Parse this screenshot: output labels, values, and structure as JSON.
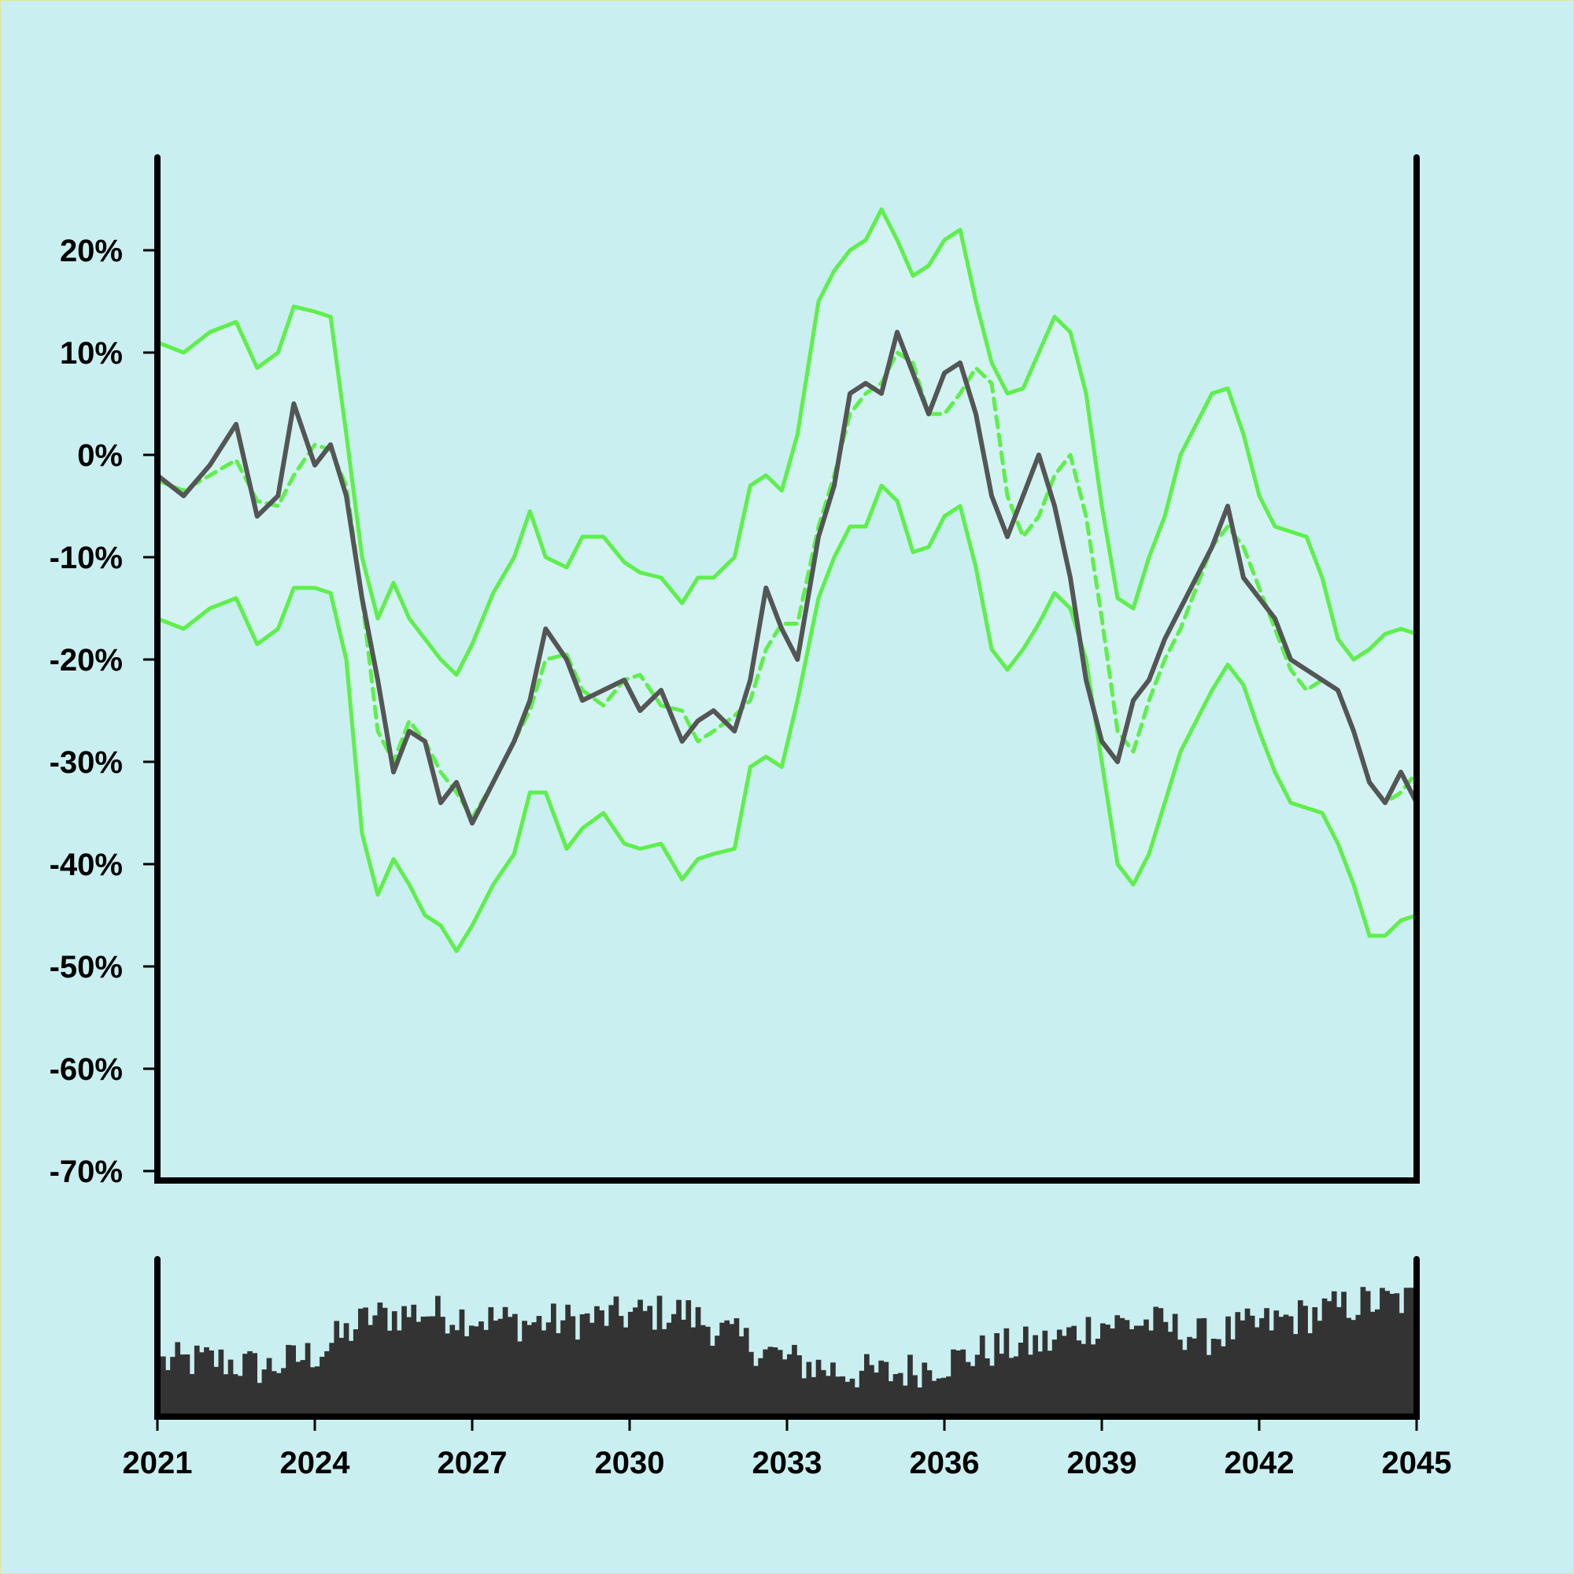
{
  "chart_data": [
    {
      "type": "line",
      "title": "",
      "xlabel": "",
      "ylabel": "",
      "xlim": [
        2021,
        2045
      ],
      "ylim": [
        -70,
        28
      ],
      "yticks": [
        20,
        10,
        0,
        -10,
        -20,
        -30,
        -40,
        -50,
        -60,
        -70
      ],
      "ytick_labels": [
        "20%",
        "10%",
        "0%",
        "-10%",
        "-20%",
        "-30%",
        "-40%",
        "-50%",
        "-60%",
        "-70%"
      ],
      "grid": false,
      "legend": "none",
      "colors": {
        "price": "#555555",
        "bands": "#5ef04a",
        "band_fill": "#d3f3f3",
        "background": "#c9eff0"
      },
      "series": [
        {
          "role": "price",
          "style": "solid",
          "x": [
            2021.0,
            2021.5,
            2022.0,
            2022.5,
            2022.9,
            2023.3,
            2023.6,
            2024.0,
            2024.3,
            2024.6,
            2024.9,
            2025.2,
            2025.5,
            2025.8,
            2026.1,
            2026.4,
            2026.7,
            2027.0,
            2027.4,
            2027.8,
            2028.1,
            2028.4,
            2028.8,
            2029.1,
            2029.5,
            2029.9,
            2030.2,
            2030.6,
            2031.0,
            2031.3,
            2031.6,
            2032.0,
            2032.3,
            2032.6,
            2032.9,
            2033.2,
            2033.6,
            2033.9,
            2034.2,
            2034.5,
            2034.8,
            2035.1,
            2035.4,
            2035.7,
            2036.0,
            2036.3,
            2036.6,
            2036.9,
            2037.2,
            2037.5,
            2037.8,
            2038.1,
            2038.4,
            2038.7,
            2039.0,
            2039.3,
            2039.6,
            2039.9,
            2040.2,
            2040.5,
            2040.8,
            2041.1,
            2041.4,
            2041.7,
            2042.0,
            2042.3,
            2042.6,
            2042.9,
            2043.2,
            2043.5,
            2043.8,
            2044.1,
            2044.4,
            2044.7,
            2045.0
          ],
          "y": [
            -2,
            -4,
            -1,
            3,
            -6,
            -4,
            5,
            -1,
            1,
            -4,
            -14,
            -22,
            -31,
            -27,
            -28,
            -34,
            -32,
            -36,
            -32,
            -28,
            -24,
            -17,
            -20,
            -24,
            -23,
            -22,
            -25,
            -23,
            -28,
            -26,
            -25,
            -27,
            -22,
            -13,
            -17,
            -20,
            -8,
            -3,
            6,
            7,
            6,
            12,
            8,
            4,
            8,
            9,
            4,
            -4,
            -8,
            -4,
            0,
            -5,
            -12,
            -22,
            -28,
            -30,
            -24,
            -22,
            -18,
            -15,
            -12,
            -9,
            -5,
            -12,
            -14,
            -16,
            -20,
            -21,
            -22,
            -23,
            -27,
            -32,
            -34,
            -31,
            -34
          ]
        },
        {
          "role": "middle-band",
          "style": "dashed",
          "x": [
            2021.0,
            2021.5,
            2022.0,
            2022.5,
            2022.9,
            2023.3,
            2023.6,
            2024.0,
            2024.3,
            2024.6,
            2024.9,
            2025.2,
            2025.5,
            2025.8,
            2026.1,
            2026.4,
            2026.7,
            2027.0,
            2027.4,
            2027.8,
            2028.1,
            2028.4,
            2028.8,
            2029.1,
            2029.5,
            2029.9,
            2030.2,
            2030.6,
            2031.0,
            2031.3,
            2031.6,
            2032.0,
            2032.3,
            2032.6,
            2032.9,
            2033.2,
            2033.6,
            2033.9,
            2034.2,
            2034.5,
            2034.8,
            2035.1,
            2035.4,
            2035.7,
            2036.0,
            2036.3,
            2036.6,
            2036.9,
            2037.2,
            2037.5,
            2037.8,
            2038.1,
            2038.4,
            2038.7,
            2039.0,
            2039.3,
            2039.6,
            2039.9,
            2040.2,
            2040.5,
            2040.8,
            2041.1,
            2041.4,
            2041.7,
            2042.0,
            2042.3,
            2042.6,
            2042.9,
            2043.2,
            2043.5,
            2043.8,
            2044.1,
            2044.4,
            2044.7,
            2045.0
          ],
          "y": [
            -2.5,
            -3.5,
            -2,
            -0.5,
            -4.5,
            -5,
            -2,
            1,
            0.5,
            -3,
            -14,
            -27,
            -30,
            -26,
            -28,
            -31,
            -33,
            -35.5,
            -32,
            -28,
            -25,
            -20,
            -19.5,
            -23,
            -24.5,
            -22,
            -21.5,
            -24.5,
            -25,
            -28,
            -27,
            -25.5,
            -24,
            -19,
            -16.5,
            -16.5,
            -7,
            -2,
            4,
            6,
            7,
            10,
            9,
            4,
            4,
            6,
            8.5,
            7,
            -4,
            -8,
            -6,
            -2,
            0,
            -6,
            -16,
            -27,
            -29,
            -24,
            -20,
            -17,
            -13,
            -9,
            -7,
            -9,
            -13,
            -17,
            -21,
            -23,
            -22,
            -23,
            -27,
            -32,
            -34,
            -33,
            -31
          ]
        },
        {
          "role": "upper-band",
          "style": "solid",
          "x": [
            2021.0,
            2021.5,
            2022.0,
            2022.5,
            2022.9,
            2023.3,
            2023.6,
            2024.0,
            2024.3,
            2024.6,
            2024.9,
            2025.2,
            2025.5,
            2025.8,
            2026.1,
            2026.4,
            2026.7,
            2027.0,
            2027.4,
            2027.8,
            2028.1,
            2028.4,
            2028.8,
            2029.1,
            2029.5,
            2029.9,
            2030.2,
            2030.6,
            2031.0,
            2031.3,
            2031.6,
            2032.0,
            2032.3,
            2032.6,
            2032.9,
            2033.2,
            2033.6,
            2033.9,
            2034.2,
            2034.5,
            2034.8,
            2035.1,
            2035.4,
            2035.7,
            2036.0,
            2036.3,
            2036.6,
            2036.9,
            2037.2,
            2037.5,
            2037.8,
            2038.1,
            2038.4,
            2038.7,
            2039.0,
            2039.3,
            2039.6,
            2039.9,
            2040.2,
            2040.5,
            2040.8,
            2041.1,
            2041.4,
            2041.7,
            2042.0,
            2042.3,
            2042.6,
            2042.9,
            2043.2,
            2043.5,
            2043.8,
            2044.1,
            2044.4,
            2044.7,
            2045.0
          ],
          "y": [
            11,
            10,
            12,
            13,
            8.5,
            10,
            14.5,
            14,
            13.5,
            2,
            -10,
            -16,
            -12.5,
            -16,
            -18,
            -20,
            -21.5,
            -18.5,
            -13.5,
            -10,
            -5.5,
            -10,
            -11,
            -8,
            -8,
            -10.5,
            -11.5,
            -12,
            -14.5,
            -12,
            -12,
            -10,
            -3,
            -2,
            -3.5,
            2,
            15,
            18,
            20,
            21,
            24,
            21,
            17.5,
            18.5,
            21,
            22,
            15,
            9,
            6,
            6.5,
            10,
            13.5,
            12,
            6,
            -5,
            -14,
            -15,
            -10,
            -6,
            0,
            3,
            6,
            6.5,
            2,
            -4,
            -7,
            -7.5,
            -8,
            -12,
            -18,
            -20,
            -19,
            -17.5,
            -17,
            -17.5
          ]
        },
        {
          "role": "lower-band",
          "style": "solid",
          "x": [
            2021.0,
            2021.5,
            2022.0,
            2022.5,
            2022.9,
            2023.3,
            2023.6,
            2024.0,
            2024.3,
            2024.6,
            2024.9,
            2025.2,
            2025.5,
            2025.8,
            2026.1,
            2026.4,
            2026.7,
            2027.0,
            2027.4,
            2027.8,
            2028.1,
            2028.4,
            2028.8,
            2029.1,
            2029.5,
            2029.9,
            2030.2,
            2030.6,
            2031.0,
            2031.3,
            2031.6,
            2032.0,
            2032.3,
            2032.6,
            2032.9,
            2033.2,
            2033.6,
            2033.9,
            2034.2,
            2034.5,
            2034.8,
            2035.1,
            2035.4,
            2035.7,
            2036.0,
            2036.3,
            2036.6,
            2036.9,
            2037.2,
            2037.5,
            2037.8,
            2038.1,
            2038.4,
            2038.7,
            2039.0,
            2039.3,
            2039.6,
            2039.9,
            2040.2,
            2040.5,
            2040.8,
            2041.1,
            2041.4,
            2041.7,
            2042.0,
            2042.3,
            2042.6,
            2042.9,
            2043.2,
            2043.5,
            2043.8,
            2044.1,
            2044.4,
            2044.7,
            2045.0
          ],
          "y": [
            -16,
            -17,
            -15,
            -14,
            -18.5,
            -17,
            -13,
            -13,
            -13.5,
            -20,
            -37,
            -43,
            -39.5,
            -42,
            -45,
            -46,
            -48.5,
            -46,
            -42,
            -39,
            -33,
            -33,
            -38.5,
            -36.5,
            -35,
            -38,
            -38.5,
            -38,
            -41.5,
            -39.5,
            -39,
            -38.5,
            -30.5,
            -29.5,
            -30.5,
            -24,
            -14,
            -10,
            -7,
            -7,
            -3,
            -4.5,
            -9.5,
            -9,
            -6,
            -5,
            -11,
            -19,
            -21,
            -19,
            -16.5,
            -13.5,
            -15,
            -20,
            -30,
            -40,
            -42,
            -39,
            -34,
            -29,
            -26,
            -23,
            -20.5,
            -22.5,
            -27,
            -31,
            -34,
            -34.5,
            -35,
            -38,
            -42,
            -47,
            -47,
            -45.5,
            -45
          ]
        }
      ]
    },
    {
      "type": "bar",
      "title": "",
      "xlabel": "",
      "ylabel": "",
      "xlim": [
        2021,
        2045
      ],
      "xticks": [
        2021,
        2024,
        2027,
        2030,
        2033,
        2036,
        2039,
        2042,
        2045
      ],
      "xtick_labels": [
        "2021",
        "2024",
        "2027",
        "2030",
        "2033",
        "2036",
        "2039",
        "2042",
        "2045"
      ],
      "ylim": [
        0,
        100
      ],
      "color": "#333333",
      "volume_profile": {
        "x": [
          2021,
          2022,
          2023,
          2024,
          2025,
          2026,
          2027,
          2028,
          2029,
          2030,
          2031,
          2032,
          2033,
          2034,
          2035,
          2036,
          2037,
          2038,
          2039,
          2040,
          2041,
          2042,
          2043,
          2044,
          2045
        ],
        "y": [
          38,
          40,
          34,
          45,
          70,
          74,
          70,
          66,
          68,
          72,
          74,
          56,
          40,
          32,
          30,
          38,
          48,
          52,
          66,
          66,
          56,
          64,
          72,
          80,
          82
        ]
      }
    }
  ]
}
